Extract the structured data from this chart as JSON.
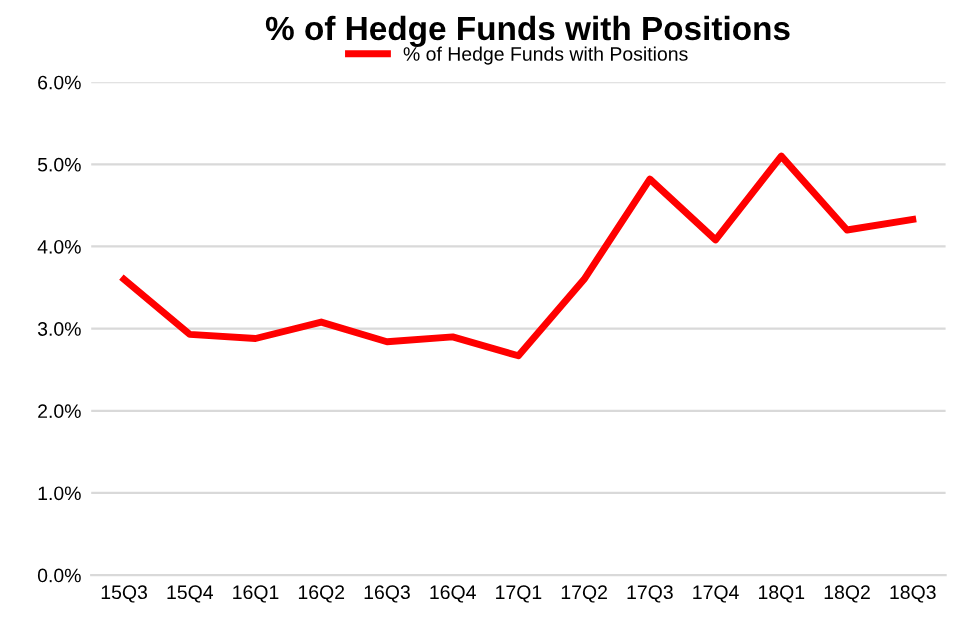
{
  "chart_data": {
    "type": "line",
    "title": "% of Hedge Funds with Positions",
    "categories": [
      "15Q3",
      "15Q4",
      "16Q1",
      "16Q2",
      "16Q3",
      "16Q4",
      "17Q1",
      "17Q2",
      "17Q3",
      "17Q4",
      "18Q1",
      "18Q2",
      "18Q3"
    ],
    "series": [
      {
        "name": "% of Hedge Funds with Positions",
        "color": "#ff0000",
        "values": [
          3.6,
          2.93,
          2.88,
          3.08,
          2.84,
          2.9,
          2.67,
          3.6,
          4.82,
          4.08,
          5.1,
          4.2,
          4.33
        ]
      }
    ],
    "ylim": [
      0,
      6
    ],
    "yticks": [
      {
        "value": 0,
        "label": "0.0%"
      },
      {
        "value": 1,
        "label": "1.0%"
      },
      {
        "value": 2,
        "label": "2.0%"
      },
      {
        "value": 3,
        "label": "3.0%"
      },
      {
        "value": 4,
        "label": "4.0%"
      },
      {
        "value": 5,
        "label": "5.0%"
      },
      {
        "value": 6,
        "label": "6.0%"
      }
    ],
    "grid": "y",
    "legend": "top",
    "marker": "none",
    "line_style": "solid"
  }
}
